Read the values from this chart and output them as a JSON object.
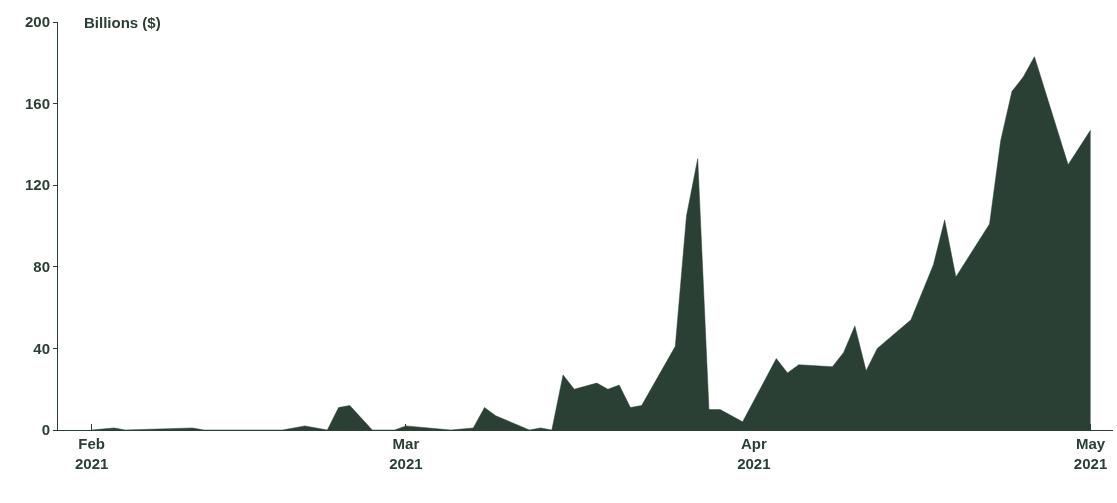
{
  "chart_data": {
    "type": "area",
    "ylabel": "Billions ($)",
    "x": [
      "2021-02-01",
      "2021-02-03",
      "2021-02-04",
      "2021-02-10",
      "2021-02-11",
      "2021-02-18",
      "2021-02-20",
      "2021-02-22",
      "2021-02-23",
      "2021-02-24",
      "2021-02-26",
      "2021-02-28",
      "2021-03-01",
      "2021-03-05",
      "2021-03-07",
      "2021-03-08",
      "2021-03-09",
      "2021-03-12",
      "2021-03-13",
      "2021-03-14",
      "2021-03-15",
      "2021-03-16",
      "2021-03-18",
      "2021-03-19",
      "2021-03-20",
      "2021-03-21",
      "2021-03-22",
      "2021-03-25",
      "2021-03-26",
      "2021-03-27",
      "2021-03-28",
      "2021-03-29",
      "2021-03-31",
      "2021-04-03",
      "2021-04-04",
      "2021-04-05",
      "2021-04-08",
      "2021-04-09",
      "2021-04-10",
      "2021-04-11",
      "2021-04-12",
      "2021-04-15",
      "2021-04-17",
      "2021-04-18",
      "2021-04-19",
      "2021-04-22",
      "2021-04-23",
      "2021-04-24",
      "2021-04-25",
      "2021-04-26",
      "2021-04-29",
      "2021-05-01"
    ],
    "series": [
      {
        "color": "#2a4034",
        "values": [
          0,
          1,
          0,
          1,
          0,
          0,
          2,
          0,
          11,
          12,
          0,
          0,
          2,
          0,
          1,
          11,
          7,
          0,
          1,
          0,
          27,
          20,
          23,
          20,
          22,
          11,
          12,
          41,
          105,
          133,
          10,
          10,
          4,
          35,
          28,
          32,
          31,
          38,
          51,
          29,
          40,
          54,
          81,
          103,
          75,
          101,
          142,
          166,
          173,
          183,
          130,
          147
        ]
      }
    ],
    "xlim": [
      "2021-01-29",
      "2021-05-03"
    ],
    "xticks": [
      {
        "value": "2021-02-01",
        "label": "Feb\n2021"
      },
      {
        "value": "2021-03-01",
        "label": "Mar\n2021"
      },
      {
        "value": "2021-04-01",
        "label": "Apr\n2021"
      },
      {
        "value": "2021-05-01",
        "label": "May\n2021"
      }
    ],
    "ylim": [
      0,
      200
    ],
    "yticks": [
      0,
      40,
      80,
      120,
      160,
      200
    ]
  }
}
